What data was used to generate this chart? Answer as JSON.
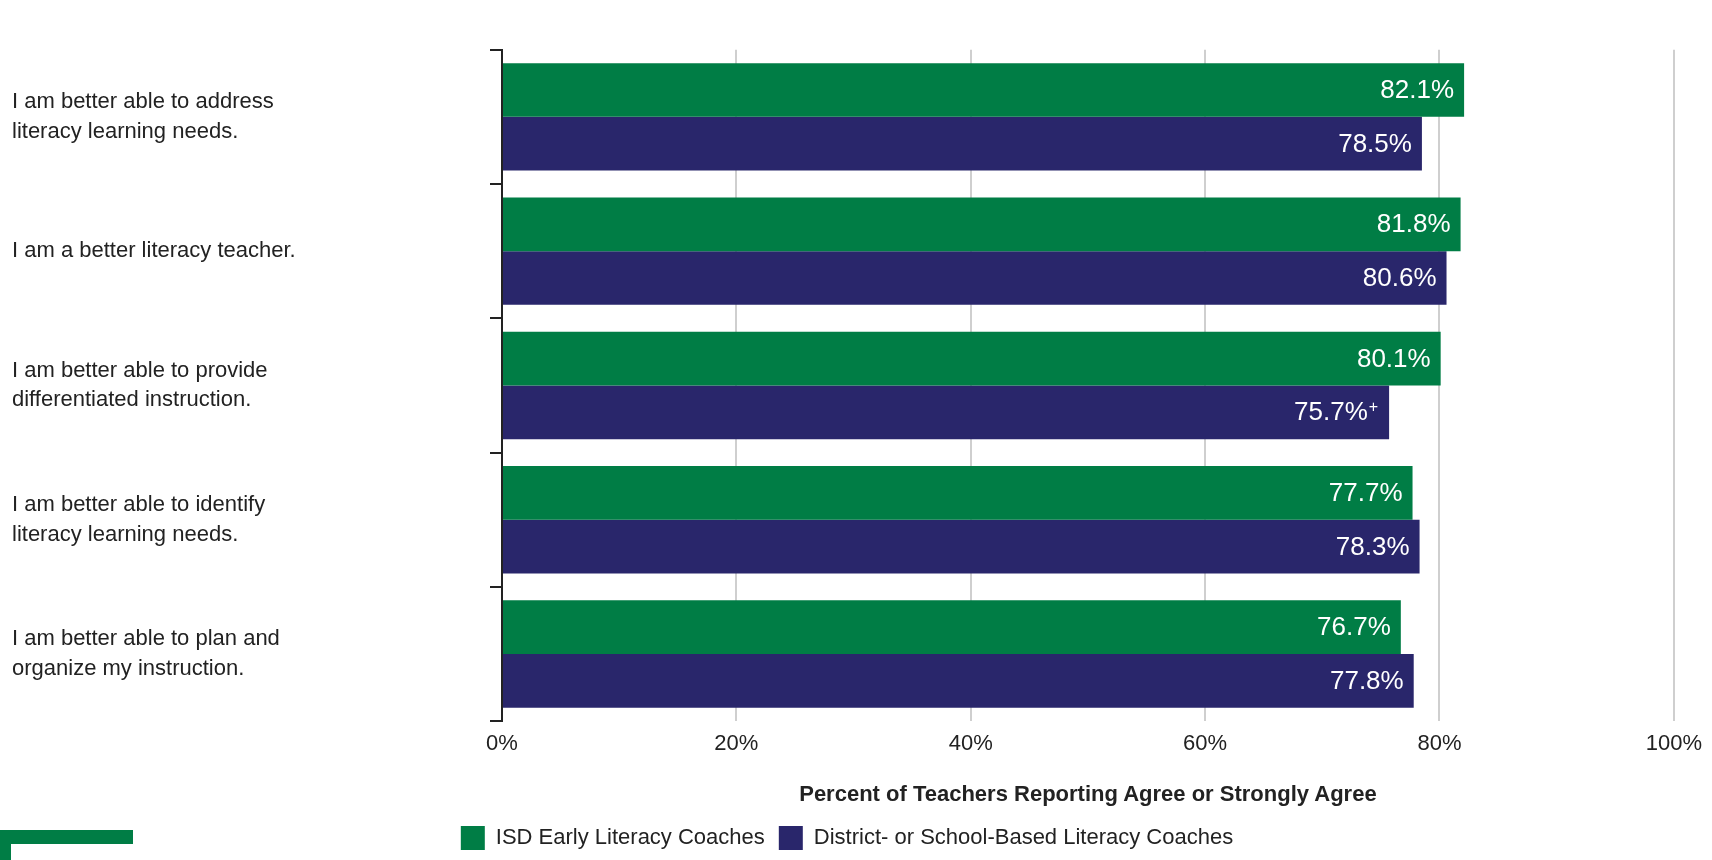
{
  "chart_data": {
    "type": "bar",
    "orientation": "horizontal",
    "xlabel": "Percent of Teachers Reporting Agree or Strongly Agree",
    "categories": [
      "I am better able to address literacy learning needs.",
      "I am a better literacy teacher.",
      "I am better able to provide differentiated instruction.",
      "I am better able to identify literacy learning needs.",
      "I am better able to plan and organize my instruction."
    ],
    "series": [
      {
        "name": "ISD Early Literacy Coaches",
        "color": "#007d45",
        "values": [
          82.1,
          81.8,
          80.1,
          77.7,
          76.7
        ],
        "value_labels": [
          "82.1%",
          "81.8%",
          "80.1%",
          "77.7%",
          "76.7%"
        ]
      },
      {
        "name": "District- or School-Based Literacy Coaches",
        "color": "#29266b",
        "values": [
          78.5,
          80.6,
          75.7,
          78.3,
          77.8
        ],
        "value_labels": [
          "78.5%",
          "80.6%",
          "75.7%$^{+}$",
          "78.3%",
          "77.8%"
        ]
      }
    ],
    "xlim": [
      0,
      100
    ],
    "xticks": [
      {
        "value": 0,
        "label": "0%"
      },
      {
        "value": 20,
        "label": "20%"
      },
      {
        "value": 40,
        "label": "40%"
      },
      {
        "value": 60,
        "label": "60%"
      },
      {
        "value": 80,
        "label": "80%"
      },
      {
        "value": 100,
        "label": "100%"
      }
    ],
    "grid": "x",
    "legend": "bottom"
  }
}
